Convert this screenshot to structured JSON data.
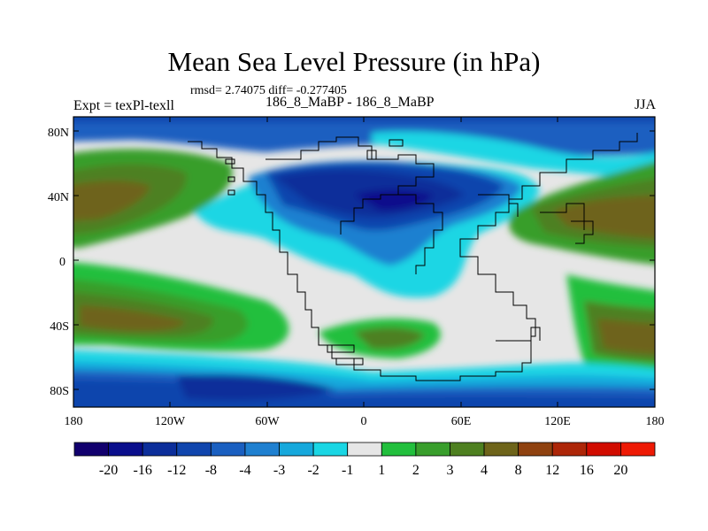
{
  "title": "Mean Sea Level Pressure (in hPa)",
  "stats": "rmsd= 2.74075 diff= -0.277405",
  "left_label": "Expt = texPl-texll",
  "center_label": "186_8_MaBP - 186_8_MaBP",
  "right_label": "JJA",
  "lat_ticks": [
    "80N",
    "40N",
    "0",
    "40S",
    "80S"
  ],
  "lon_ticks": [
    "180",
    "120W",
    "60W",
    "0",
    "60E",
    "120E",
    "180"
  ],
  "colorbar": {
    "labels": [
      "-20",
      "-16",
      "-12",
      "-8",
      "-4",
      "-3",
      "-2",
      "-1",
      "1",
      "2",
      "3",
      "4",
      "8",
      "12",
      "16",
      "20"
    ],
    "colors": [
      "#12006e",
      "#0a0e8c",
      "#0c2e9a",
      "#1045ad",
      "#1a5fc0",
      "#1f80d0",
      "#16a8dc",
      "#1ad6e4",
      "#e6e6e6",
      "#22bf3d",
      "#399e2c",
      "#4e8020",
      "#6e641a",
      "#8f4210",
      "#ad2608",
      "#d10c00",
      "#ee1a05"
    ]
  }
}
